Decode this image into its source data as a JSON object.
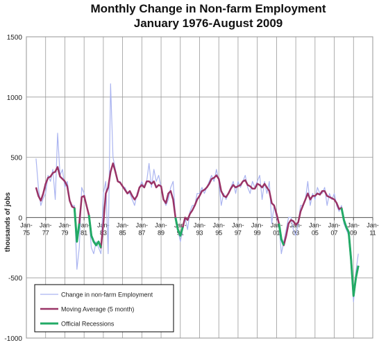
{
  "chart_data": {
    "type": "line",
    "title": "Monthly Change in Non-farm Employment",
    "subtitle": "January 1976-August 2009",
    "y_label": "thousands of jobs",
    "x": [
      1976,
      1976.25,
      1976.5,
      1976.75,
      1977,
      1977.25,
      1977.5,
      1977.75,
      1978,
      1978.25,
      1978.5,
      1978.75,
      1979,
      1979.25,
      1979.5,
      1979.75,
      1980,
      1980.25,
      1980.5,
      1980.75,
      1981,
      1981.25,
      1981.5,
      1981.75,
      1982,
      1982.25,
      1982.5,
      1982.75,
      1983,
      1983.25,
      1983.5,
      1983.75,
      1984,
      1984.25,
      1984.5,
      1984.75,
      1985,
      1985.25,
      1985.5,
      1985.75,
      1986,
      1986.25,
      1986.5,
      1986.75,
      1987,
      1987.25,
      1987.5,
      1987.75,
      1988,
      1988.25,
      1988.5,
      1988.75,
      1989,
      1989.25,
      1989.5,
      1989.75,
      1990,
      1990.25,
      1990.5,
      1990.75,
      1991,
      1991.25,
      1991.5,
      1991.75,
      1992,
      1992.25,
      1992.5,
      1992.75,
      1993,
      1993.25,
      1993.5,
      1993.75,
      1994,
      1994.25,
      1994.5,
      1994.75,
      1995,
      1995.25,
      1995.5,
      1995.75,
      1996,
      1996.25,
      1996.5,
      1996.75,
      1997,
      1997.25,
      1997.5,
      1997.75,
      1998,
      1998.25,
      1998.5,
      1998.75,
      1999,
      1999.25,
      1999.5,
      1999.75,
      2000,
      2000.25,
      2000.5,
      2000.75,
      2001,
      2001.25,
      2001.5,
      2001.75,
      2002,
      2002.25,
      2002.5,
      2002.75,
      2003,
      2003.25,
      2003.5,
      2003.75,
      2004,
      2004.25,
      2004.5,
      2004.75,
      2005,
      2005.25,
      2005.5,
      2005.75,
      2006,
      2006.25,
      2006.5,
      2006.75,
      2007,
      2007.25,
      2007.5,
      2007.75,
      2008,
      2008.25,
      2008.5,
      2008.75,
      2009,
      2009.25,
      2009.5
    ],
    "series": [
      {
        "name": "Change in non-farm Employment",
        "color": "#aab4f0",
        "width": 1.2,
        "values": [
          490,
          250,
          100,
          160,
          200,
          350,
          300,
          400,
          150,
          700,
          350,
          400,
          250,
          300,
          150,
          100,
          100,
          -430,
          -250,
          250,
          200,
          100,
          0,
          -250,
          -300,
          -200,
          -250,
          -300,
          200,
          300,
          -300,
          1110,
          500,
          400,
          300,
          300,
          250,
          250,
          200,
          200,
          150,
          100,
          200,
          250,
          300,
          250,
          300,
          450,
          250,
          400,
          300,
          350,
          250,
          150,
          100,
          150,
          250,
          300,
          0,
          -100,
          -200,
          -100,
          0,
          -100,
          50,
          100,
          100,
          200,
          200,
          250,
          200,
          250,
          300,
          350,
          300,
          400,
          300,
          100,
          200,
          150,
          200,
          250,
          300,
          200,
          300,
          250,
          300,
          350,
          250,
          200,
          300,
          250,
          300,
          350,
          150,
          300,
          200,
          300,
          -50,
          100,
          0,
          -50,
          -300,
          -200,
          -100,
          0,
          0,
          -100,
          -150,
          -50,
          100,
          100,
          150,
          300,
          100,
          200,
          150,
          250,
          200,
          200,
          250,
          100,
          200,
          150,
          200,
          100,
          50,
          100,
          -50,
          -100,
          -150,
          -400,
          -700,
          -450,
          -300
        ]
      },
      {
        "name": "Moving Average (5 month)",
        "color": "#993366",
        "width": 2.5,
        "values": [
          250,
          180,
          140,
          200,
          280,
          330,
          340,
          370,
          380,
          420,
          340,
          320,
          300,
          260,
          140,
          90,
          80,
          -200,
          -50,
          170,
          180,
          100,
          20,
          -150,
          -200,
          -230,
          -200,
          -250,
          -50,
          200,
          250,
          380,
          450,
          380,
          300,
          290,
          260,
          230,
          200,
          220,
          180,
          150,
          180,
          250,
          270,
          250,
          300,
          300,
          280,
          300,
          250,
          270,
          260,
          150,
          120,
          200,
          220,
          150,
          0,
          -100,
          -150,
          -80,
          0,
          -20,
          30,
          60,
          100,
          150,
          180,
          220,
          230,
          250,
          280,
          320,
          330,
          350,
          320,
          220,
          180,
          170,
          200,
          240,
          270,
          250,
          260,
          270,
          300,
          310,
          270,
          260,
          240,
          240,
          280,
          270,
          250,
          280,
          250,
          220,
          120,
          100,
          30,
          -50,
          -180,
          -230,
          -150,
          -50,
          -20,
          -30,
          -60,
          -40,
          50,
          100,
          150,
          200,
          150,
          180,
          180,
          200,
          190,
          220,
          220,
          180,
          170,
          160,
          150,
          120,
          70,
          80,
          -20,
          -80,
          -120,
          -350,
          -650,
          -500,
          -400
        ]
      },
      {
        "name": "Official Recessions",
        "color": "#22aa66",
        "width": 3,
        "values": [
          null,
          null,
          null,
          null,
          null,
          null,
          null,
          null,
          null,
          null,
          null,
          null,
          null,
          null,
          null,
          null,
          80,
          -200,
          -50,
          null,
          null,
          null,
          20,
          -150,
          -200,
          -230,
          -200,
          -250,
          null,
          null,
          null,
          null,
          null,
          null,
          null,
          null,
          null,
          null,
          null,
          null,
          null,
          null,
          null,
          null,
          null,
          null,
          null,
          null,
          null,
          null,
          null,
          null,
          null,
          null,
          null,
          null,
          null,
          null,
          0,
          -100,
          -150,
          -80,
          null,
          null,
          null,
          null,
          null,
          null,
          null,
          null,
          null,
          null,
          null,
          null,
          null,
          null,
          null,
          null,
          null,
          null,
          null,
          null,
          null,
          null,
          null,
          null,
          null,
          null,
          null,
          null,
          null,
          null,
          null,
          null,
          null,
          null,
          null,
          null,
          null,
          null,
          null,
          -50,
          -180,
          -230,
          null,
          null,
          null,
          null,
          null,
          null,
          null,
          null,
          null,
          null,
          null,
          null,
          null,
          null,
          null,
          null,
          null,
          null,
          null,
          null,
          null,
          null,
          null,
          80,
          -20,
          -80,
          -120,
          -350,
          -650,
          -500,
          -400
        ]
      }
    ],
    "xlim": [
      1975,
      2011
    ],
    "xticks": [
      {
        "value": 1975,
        "label": "Jan-75"
      },
      {
        "value": 1977,
        "label": "Jan-77"
      },
      {
        "value": 1979,
        "label": "Jan-79"
      },
      {
        "value": 1981,
        "label": "Jan-81"
      },
      {
        "value": 1983,
        "label": "Jan-83"
      },
      {
        "value": 1985,
        "label": "Jan-85"
      },
      {
        "value": 1987,
        "label": "Jan-87"
      },
      {
        "value": 1989,
        "label": "Jan-89"
      },
      {
        "value": 1991,
        "label": "Jan-91"
      },
      {
        "value": 1993,
        "label": "Jan-93"
      },
      {
        "value": 1995,
        "label": "Jan-95"
      },
      {
        "value": 1997,
        "label": "Jan-97"
      },
      {
        "value": 1999,
        "label": "Jan-99"
      },
      {
        "value": 2001,
        "label": "Jan-01"
      },
      {
        "value": 2003,
        "label": "Jan-03"
      },
      {
        "value": 2005,
        "label": "Jan-05"
      },
      {
        "value": 2007,
        "label": "Jan-07"
      },
      {
        "value": 2009,
        "label": "Jan-09"
      },
      {
        "value": 2011,
        "label": "Jan-11"
      }
    ],
    "ylim": [
      -1000,
      1500
    ],
    "yticks": [
      -1000,
      -500,
      0,
      500,
      1000,
      1500
    ],
    "grid": true,
    "legend": "lower left"
  }
}
